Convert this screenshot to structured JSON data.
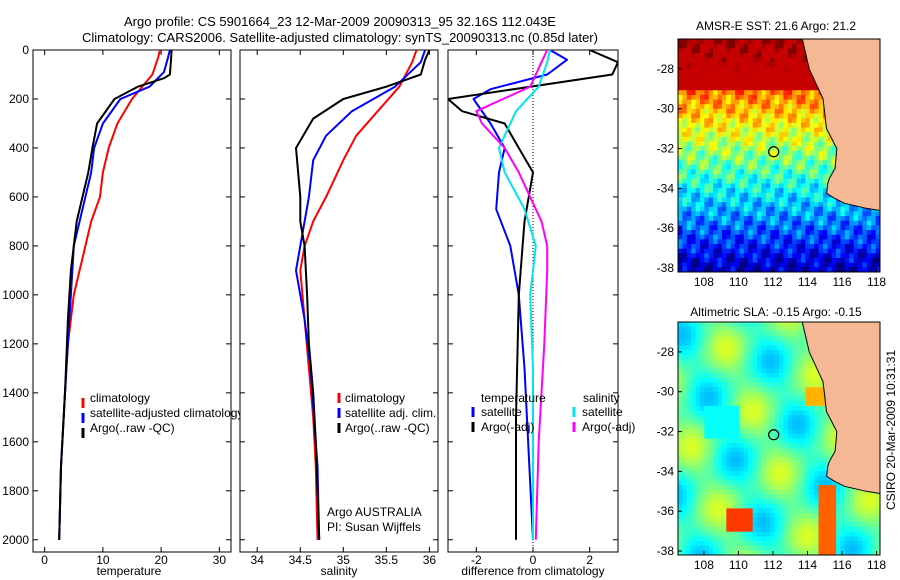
{
  "header": {
    "title_line1": "Argo profile: CS 5901664_23 12-Mar-2009 20090313_95 32.16S 112.043E",
    "title_line2": "Climatology: CARS2006. Satellite-adjusted climatology: synTS_20090313.nc (0.85d later)"
  },
  "side_label": "CSIRO 20-Mar-2009 10:31:31",
  "colors": {
    "climatology": "#ff0000",
    "satellite": "#0000ff",
    "argo": "#000000",
    "salinity_sat": "#00e5ee",
    "salinity_argo": "#ff00ff",
    "land": "#f5b895"
  },
  "chart_data": [
    {
      "type": "line",
      "title": "",
      "xlabel": "temperature",
      "ylabel": "",
      "xlim": [
        -2,
        32
      ],
      "ylim": [
        2050,
        0
      ],
      "x_ticks": [
        "0",
        "10",
        "20",
        "30"
      ],
      "x_tick_values": [
        0,
        10,
        20,
        30
      ],
      "y_ticks": [
        "0",
        "200",
        "400",
        "600",
        "800",
        "1000",
        "1200",
        "1400",
        "1600",
        "1800",
        "2000"
      ],
      "y_tick_values": [
        0,
        200,
        400,
        600,
        800,
        1000,
        1200,
        1400,
        1600,
        1800,
        2000
      ],
      "legend": [
        "climatology",
        "satellite-adjusted climatology",
        "Argo(..raw -QC)"
      ],
      "legend_placement": "lower-middle",
      "series": [
        {
          "name": "climatology",
          "color": "#ff0000",
          "x": [
            19.8,
            19.5,
            18.5,
            15,
            12.5,
            11,
            10,
            9.5,
            8,
            7,
            6,
            5,
            4,
            3.5,
            2.8,
            2.5
          ],
          "y": [
            0,
            30,
            100,
            200,
            300,
            400,
            500,
            600,
            700,
            800,
            900,
            1000,
            1200,
            1400,
            1700,
            2000
          ]
        },
        {
          "name": "satellite-adjusted climatology",
          "color": "#0000ff",
          "x": [
            21.5,
            21.2,
            20.5,
            18,
            13,
            10,
            8.5,
            8,
            7,
            6,
            5,
            4.5,
            4,
            3.5,
            2.8,
            2.5
          ],
          "y": [
            0,
            30,
            90,
            150,
            200,
            300,
            400,
            500,
            600,
            700,
            800,
            1000,
            1200,
            1400,
            1700,
            2000
          ]
        },
        {
          "name": "Argo(..raw -QC)",
          "color": "#000000",
          "x": [
            21.8,
            21.7,
            21.5,
            20.5,
            16,
            12,
            9,
            8.2,
            7.5,
            6.5,
            5.5,
            4.5,
            4,
            3.5,
            2.8,
            2.5
          ],
          "y": [
            0,
            40,
            100,
            115,
            150,
            200,
            300,
            400,
            500,
            600,
            700,
            900,
            1100,
            1400,
            1700,
            2000
          ]
        }
      ]
    },
    {
      "type": "line",
      "title": "",
      "xlabel": "salinity",
      "ylabel": "",
      "xlim": [
        33.8,
        36.1
      ],
      "ylim": [
        2050,
        0
      ],
      "x_ticks": [
        "34",
        "34.5",
        "35",
        "35.5",
        "36"
      ],
      "x_tick_values": [
        34,
        34.5,
        35,
        35.5,
        36
      ],
      "legend": [
        "climatology",
        "satellite adj. clim.",
        "Argo(..raw -QC)"
      ],
      "legend_placement": "lower-middle",
      "annotations": [
        "Argo AUSTRALIA",
        "PI: Susan Wijffels"
      ],
      "series": [
        {
          "name": "climatology",
          "color": "#ff0000",
          "x": [
            35.85,
            35.8,
            35.65,
            35.4,
            35.15,
            35.0,
            34.8,
            34.65,
            34.55,
            34.5,
            34.55,
            34.6,
            34.65,
            34.68,
            34.7
          ],
          "y": [
            0,
            50,
            150,
            250,
            350,
            450,
            600,
            700,
            800,
            900,
            1100,
            1300,
            1500,
            1700,
            2000
          ]
        },
        {
          "name": "satellite adj. clim.",
          "color": "#0000ff",
          "x": [
            35.95,
            35.9,
            35.6,
            35.1,
            34.8,
            34.65,
            34.6,
            34.55,
            34.5,
            34.45,
            34.55,
            34.62,
            34.66,
            34.7,
            34.72
          ],
          "y": [
            0,
            50,
            150,
            250,
            350,
            450,
            600,
            700,
            800,
            900,
            1100,
            1300,
            1500,
            1700,
            2000
          ]
        },
        {
          "name": "Argo(..raw -QC)",
          "color": "#000000",
          "x": [
            36.0,
            35.95,
            35.9,
            35.5,
            35.0,
            34.65,
            34.45,
            34.5,
            34.5,
            34.55,
            34.58,
            34.6,
            34.65,
            34.68,
            34.7,
            34.72
          ],
          "y": [
            0,
            40,
            100,
            150,
            200,
            280,
            400,
            600,
            700,
            800,
            1000,
            1200,
            1400,
            1600,
            1800,
            2000
          ]
        }
      ]
    },
    {
      "type": "line",
      "title": "",
      "xlabel": "difference from climatology",
      "ylabel": "",
      "xlim": [
        -3,
        3
      ],
      "ylim": [
        2050,
        0
      ],
      "x_ticks": [
        "-2",
        "0",
        "2"
      ],
      "x_tick_values": [
        -2,
        0,
        2
      ],
      "legend": [
        "temperature",
        "satellite",
        "Argo(-adj)",
        "salinity",
        "satellite",
        "Argo(-adj)"
      ],
      "legend_placement": "lower-middle",
      "series": [
        {
          "name": "satellite",
          "group": "temperature",
          "color": "#0000ff",
          "x": [
            0.6,
            1.2,
            0.5,
            -1.5,
            -2.1,
            -1.5,
            -1.0,
            -1.2,
            -1.3,
            -0.8,
            -0.5,
            -0.3,
            0.0
          ],
          "y": [
            0,
            40,
            100,
            160,
            200,
            300,
            400,
            500,
            650,
            800,
            1000,
            1300,
            2000
          ]
        },
        {
          "name": "Argo(-adj)",
          "group": "temperature",
          "color": "#000000",
          "x": [
            2.0,
            3.0,
            2.8,
            -3.0,
            -2.5,
            -1.0,
            -0.5,
            0.0,
            -0.3,
            -0.5,
            -0.6,
            -0.6
          ],
          "y": [
            0,
            50,
            100,
            200,
            250,
            300,
            400,
            500,
            700,
            1000,
            1500,
            2000
          ]
        },
        {
          "name": "satellite",
          "group": "salinity",
          "color": "#00e5ee",
          "x": [
            0.6,
            0.5,
            0.2,
            -0.6,
            -1.2,
            -1.0,
            -0.3,
            0.1,
            -0.1,
            0.0,
            0.0
          ],
          "y": [
            0,
            50,
            150,
            250,
            400,
            500,
            650,
            800,
            1000,
            1300,
            2000
          ]
        },
        {
          "name": "Argo(-adj)",
          "group": "salinity",
          "color": "#ff00ff",
          "x": [
            0.5,
            0.3,
            -0.1,
            -2.0,
            -1.8,
            -1.0,
            -0.5,
            0.3,
            0.5,
            0.5,
            0.4,
            0.2,
            0.1
          ],
          "y": [
            0,
            50,
            150,
            250,
            300,
            400,
            500,
            700,
            800,
            900,
            1200,
            1600,
            2000
          ]
        }
      ]
    },
    {
      "type": "heatmap",
      "title": "AMSR-E SST: 21.6  Argo: 21.2",
      "xlim": [
        106.5,
        118.2
      ],
      "ylim": [
        -38.2,
        -26.5
      ],
      "x_ticks": [
        "108",
        "110",
        "112",
        "114",
        "116",
        "118"
      ],
      "x_tick_values": [
        108,
        110,
        112,
        114,
        116,
        118
      ],
      "y_ticks": [
        "-28",
        "-30",
        "-32",
        "-34",
        "-36",
        "-38"
      ],
      "y_tick_values": [
        -28,
        -30,
        -32,
        -34,
        -36,
        -38
      ],
      "marker": {
        "lon": 112.043,
        "lat": -32.16
      }
    },
    {
      "type": "heatmap",
      "title": "Altimetric SLA: -0.15  Argo: -0.15",
      "xlim": [
        106.5,
        118.2
      ],
      "ylim": [
        -38.2,
        -26.5
      ],
      "x_ticks": [
        "108",
        "110",
        "112",
        "114",
        "116",
        "118"
      ],
      "x_tick_values": [
        108,
        110,
        112,
        114,
        116,
        118
      ],
      "y_ticks": [
        "-28",
        "-30",
        "-32",
        "-34",
        "-36",
        "-38"
      ],
      "y_tick_values": [
        -28,
        -30,
        -32,
        -34,
        -36,
        -38
      ],
      "marker": {
        "lon": 112.043,
        "lat": -32.16
      }
    }
  ]
}
